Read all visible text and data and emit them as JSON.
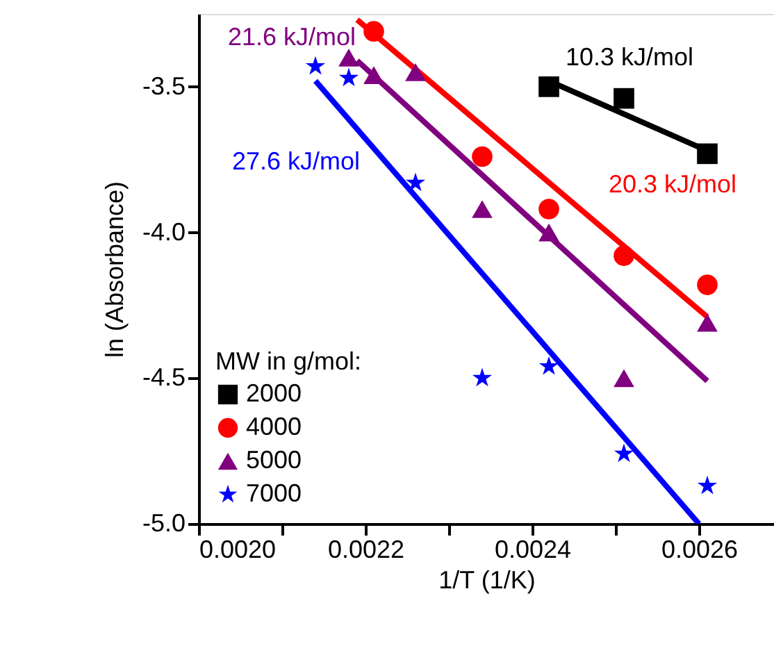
{
  "chart_data": {
    "type": "scatter",
    "xlabel": "1/T (1/K)",
    "ylabel": "ln (Absorbance)",
    "legend_title": "MW in g/mol:",
    "legend": "bottom left",
    "grid": false,
    "xlim": [
      0.002,
      0.00269
    ],
    "ylim": [
      -5.0,
      -3.25
    ],
    "xticks": [
      {
        "value": 0.002,
        "label": "0.0020"
      },
      {
        "value": 0.0021,
        "label": null
      },
      {
        "value": 0.0022,
        "label": "0.0022"
      },
      {
        "value": 0.0023,
        "label": null
      },
      {
        "value": 0.0024,
        "label": "0.0024"
      },
      {
        "value": 0.0025,
        "label": null
      },
      {
        "value": 0.0026,
        "label": "0.0026"
      }
    ],
    "yticks": [
      {
        "value": -5.0,
        "label": "-5.0"
      },
      {
        "value": -4.5,
        "label": "-4.5"
      },
      {
        "value": -4.0,
        "label": "-4.0"
      },
      {
        "value": -3.5,
        "label": "-3.5"
      }
    ],
    "series": [
      {
        "name": "2000",
        "marker": "square",
        "color": "#000000",
        "x": [
          0.00242,
          0.00251,
          0.00261
        ],
        "values": [
          -3.5,
          -3.54,
          -3.73
        ]
      },
      {
        "name": "4000",
        "marker": "circle",
        "color": "#ff0000",
        "x": [
          0.00221,
          0.00234,
          0.00242,
          0.00251,
          0.00261
        ],
        "values": [
          -3.31,
          -3.74,
          -3.92,
          -4.08,
          -4.18
        ]
      },
      {
        "name": "5000",
        "marker": "triangle",
        "color": "#800080",
        "x": [
          0.00218,
          0.00221,
          0.00226,
          0.00234,
          0.00242,
          0.00251,
          0.00261
        ],
        "values": [
          -3.4,
          -3.46,
          -3.45,
          -3.92,
          -4.0,
          -4.5,
          -4.31
        ]
      },
      {
        "name": "7000",
        "marker": "star",
        "color": "#0000ff",
        "x": [
          0.00214,
          0.00218,
          0.00226,
          0.00234,
          0.00242,
          0.00251,
          0.00261
        ],
        "values": [
          -3.43,
          -3.47,
          -3.83,
          -4.5,
          -4.46,
          -4.76,
          -4.87
        ]
      },
      {
        "type": "line",
        "color": "#000000",
        "x": [
          0.00242,
          0.00261
        ],
        "values": [
          -3.48,
          -3.72
        ]
      },
      {
        "type": "line",
        "color": "#ff0000",
        "x": [
          0.00219,
          0.00261
        ],
        "values": [
          -3.27,
          -4.29
        ]
      },
      {
        "type": "line",
        "color": "#800080",
        "x": [
          0.00219,
          0.00261
        ],
        "values": [
          -3.41,
          -4.51
        ]
      },
      {
        "type": "line",
        "color": "#0000ff",
        "x": [
          0.00214,
          0.0026
        ],
        "values": [
          -3.48,
          -5.0
        ]
      }
    ],
    "annotations": [
      {
        "text": "21.6 kJ/mol",
        "x": 0.00219,
        "y": -3.41
      },
      {
        "text": "10.3 kJ/mol",
        "x": 0.00242,
        "y": -3.48
      },
      {
        "text": "27.6 kJ/mol",
        "x": 0.00214,
        "y": -3.48
      },
      {
        "text": "20.3 kJ/mol",
        "x": 0.00245,
        "y": -3.9
      }
    ]
  }
}
